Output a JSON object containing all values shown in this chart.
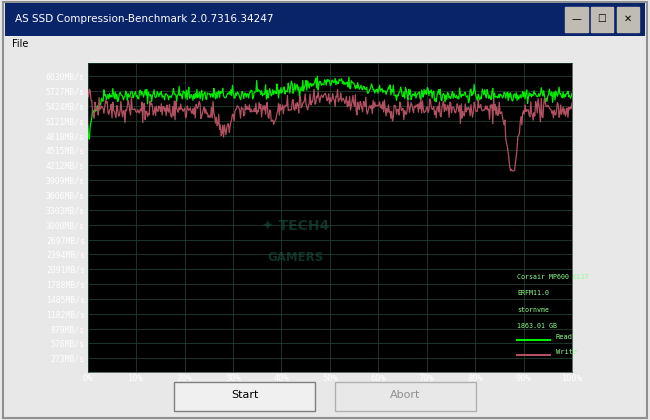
{
  "title": "AS SSD Compression-Benchmark 2.0.7316.34247",
  "file_label": "File",
  "titlebar_bg": "#e8e8e8",
  "titlebar_text_color": "#1a1a3a",
  "menu_bg": "#f5f5f5",
  "window_bg": "#e8e8e8",
  "plot_bg_color": "#000000",
  "grid_color": "#1a3a2a",
  "read_color": "#00ee00",
  "write_color": "#b05060",
  "y_ticks": [
    273,
    576,
    879,
    1182,
    1485,
    1788,
    2091,
    2394,
    2697,
    3000,
    3303,
    3606,
    3909,
    4212,
    4515,
    4818,
    5121,
    5424,
    5727,
    6030
  ],
  "x_ticks": [
    0,
    10,
    20,
    30,
    40,
    50,
    60,
    70,
    80,
    90,
    100
  ],
  "y_min": 0,
  "y_max": 6300,
  "legend_text_line1": "Corsair MP600 ELIT",
  "legend_text_line2": "ERFM11.0",
  "legend_text_line3": "stornvme",
  "legend_text_line4": "1863.01 GB",
  "start_btn": "Start",
  "abort_btn": "Abort"
}
